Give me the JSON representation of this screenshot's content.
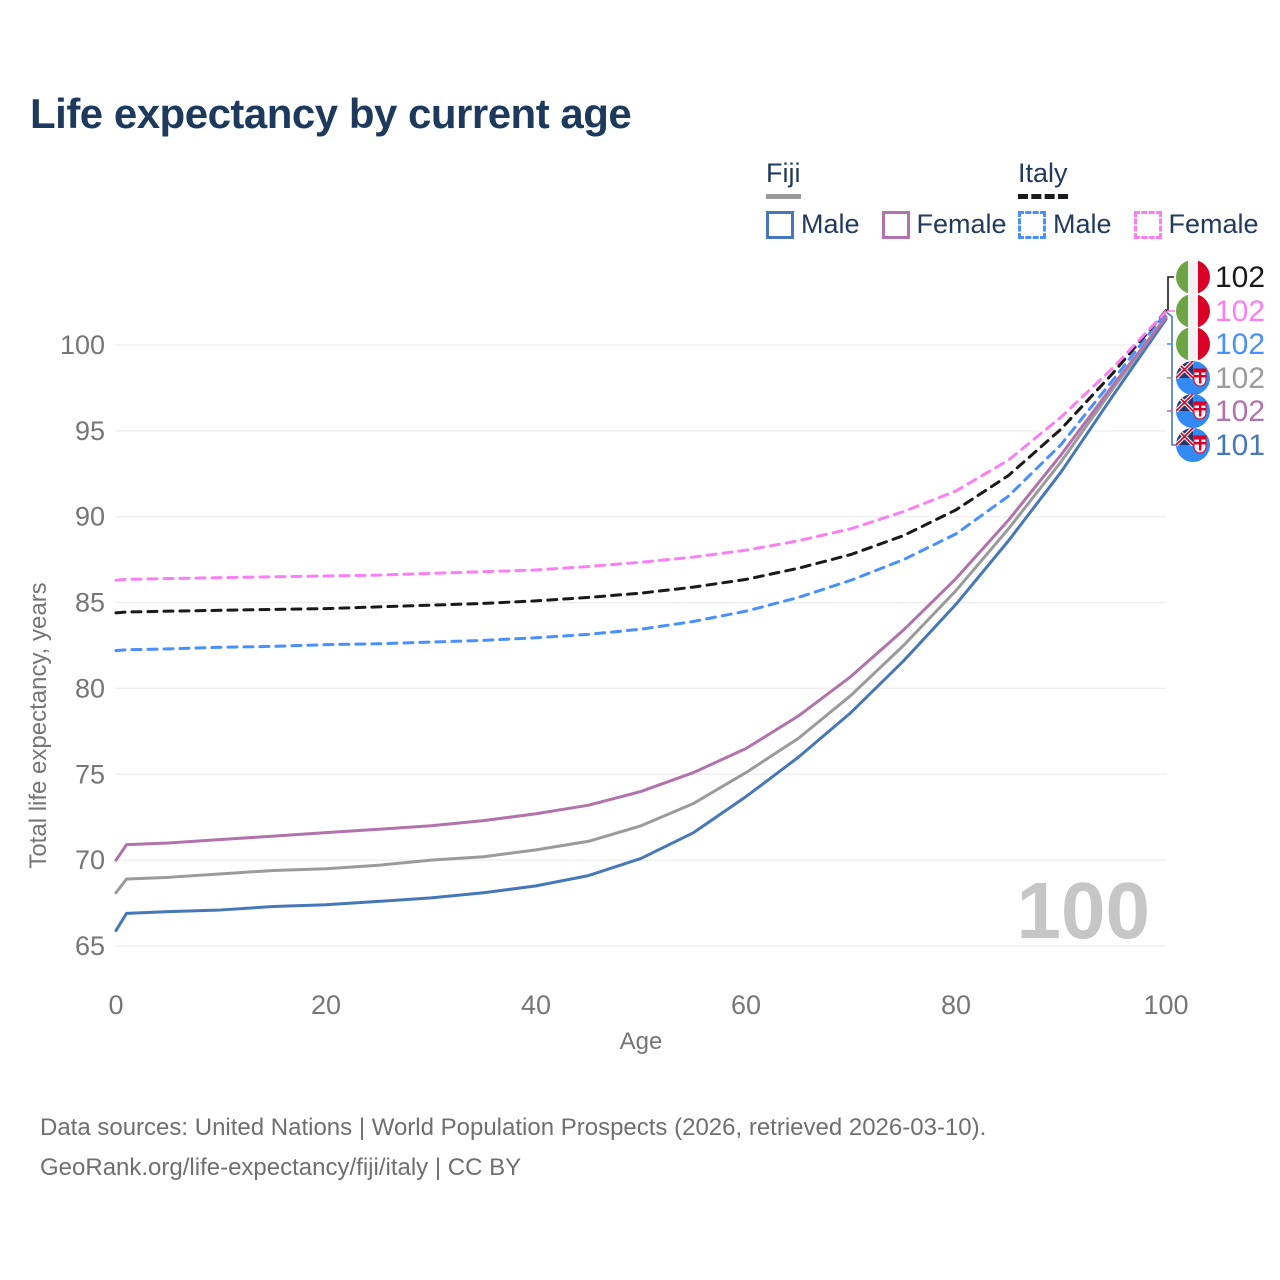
{
  "title": "Life expectancy by current age",
  "legend": {
    "groups": [
      {
        "name": "Fiji",
        "line_style": "solid",
        "underline_color": "#9b9b9b",
        "items": [
          {
            "label": "Male",
            "color": "#4678b9"
          },
          {
            "label": "Female",
            "color": "#b272ab"
          }
        ]
      },
      {
        "name": "Italy",
        "line_style": "dashed",
        "underline_color": "#1a1a1a",
        "items": [
          {
            "label": "Male",
            "color": "#4a90fc"
          },
          {
            "label": "Female",
            "color": "#fb7ff2"
          }
        ]
      }
    ]
  },
  "axes": {
    "xlabel": "Age",
    "ylabel": "Total life expectancy, years",
    "xticks": [
      0,
      20,
      40,
      60,
      80,
      100
    ],
    "yticks": [
      65,
      70,
      75,
      80,
      85,
      90,
      95,
      100
    ],
    "xlim": [
      0,
      100
    ],
    "ylim": [
      65,
      100
    ],
    "grid": true,
    "text_color": "#767676",
    "grid_color": "#ededed"
  },
  "watermark": "100",
  "end_labels": [
    {
      "flag": "italy-flag-icon",
      "country": "Italy",
      "series": "Italy total",
      "value": "102",
      "color": "#1a1a1a"
    },
    {
      "flag": "italy-flag-icon",
      "country": "Italy",
      "series": "Italy female",
      "value": "102",
      "color": "#fb7ff2"
    },
    {
      "flag": "italy-flag-icon",
      "country": "Italy",
      "series": "Italy male",
      "value": "102",
      "color": "#4a90fc"
    },
    {
      "flag": "fiji-flag-icon",
      "country": "Fiji",
      "series": "Fiji total",
      "value": "102",
      "color": "#9b9b9b"
    },
    {
      "flag": "fiji-flag-icon",
      "country": "Fiji",
      "series": "Fiji female",
      "value": "102",
      "color": "#b272ab"
    },
    {
      "flag": "fiji-flag-icon",
      "country": "Fiji",
      "series": "Fiji male",
      "value": "101",
      "color": "#4678b9"
    }
  ],
  "chart_data": {
    "type": "line",
    "title": "Life expectancy by current age",
    "xlabel": "Age",
    "ylabel": "Total life expectancy, years",
    "xlim": [
      0,
      100
    ],
    "ylim": [
      65,
      100
    ],
    "legend_position": "top-right",
    "x": [
      0,
      1,
      5,
      10,
      15,
      20,
      25,
      30,
      35,
      40,
      45,
      50,
      55,
      60,
      65,
      70,
      75,
      80,
      85,
      90,
      95,
      100
    ],
    "series": [
      {
        "name": "Fiji Male",
        "color": "#4678b9",
        "dash": false,
        "values": [
          65.9,
          66.9,
          67.0,
          67.1,
          67.3,
          67.4,
          67.6,
          67.8,
          68.1,
          68.5,
          69.1,
          70.1,
          71.6,
          73.7,
          76.0,
          78.6,
          81.6,
          84.9,
          88.6,
          92.6,
          97.1,
          101.5
        ]
      },
      {
        "name": "Fiji Total",
        "color": "#9b9b9b",
        "dash": false,
        "values": [
          68.1,
          68.9,
          69.0,
          69.2,
          69.4,
          69.5,
          69.7,
          70.0,
          70.2,
          70.6,
          71.1,
          72.0,
          73.3,
          75.1,
          77.1,
          79.6,
          82.5,
          85.7,
          89.3,
          93.2,
          97.5,
          101.65
        ]
      },
      {
        "name": "Fiji Female",
        "color": "#b272ab",
        "dash": false,
        "values": [
          70.0,
          70.9,
          71.0,
          71.2,
          71.4,
          71.6,
          71.8,
          72.0,
          72.3,
          72.7,
          73.2,
          74.0,
          75.1,
          76.5,
          78.4,
          80.7,
          83.4,
          86.4,
          89.8,
          93.6,
          97.7,
          101.6
        ]
      },
      {
        "name": "Italy Male",
        "color": "#4a90fc",
        "dash": true,
        "values": [
          82.2,
          82.25,
          82.3,
          82.4,
          82.45,
          82.55,
          82.6,
          82.7,
          82.8,
          82.95,
          83.15,
          83.45,
          83.9,
          84.5,
          85.3,
          86.3,
          87.5,
          89.0,
          91.2,
          94.2,
          98.0,
          101.9
        ]
      },
      {
        "name": "Italy Total",
        "color": "#1a1a1a",
        "dash": true,
        "values": [
          84.4,
          84.45,
          84.5,
          84.55,
          84.6,
          84.65,
          84.75,
          84.85,
          84.95,
          85.1,
          85.3,
          85.55,
          85.9,
          86.35,
          87.0,
          87.8,
          88.9,
          90.4,
          92.4,
          95.1,
          98.4,
          102.0
        ]
      },
      {
        "name": "Italy Female",
        "color": "#fb7ff2",
        "dash": true,
        "values": [
          86.3,
          86.35,
          86.4,
          86.45,
          86.5,
          86.55,
          86.6,
          86.7,
          86.8,
          86.9,
          87.1,
          87.35,
          87.65,
          88.05,
          88.6,
          89.3,
          90.3,
          91.5,
          93.3,
          95.8,
          98.7,
          101.95
        ]
      }
    ]
  },
  "footer": {
    "line1": "Data sources: United Nations | World Population Prospects (2026, retrieved 2026-03-10).",
    "line2": "GeoRank.org/life-expectancy/fiji/italy | CC BY"
  }
}
